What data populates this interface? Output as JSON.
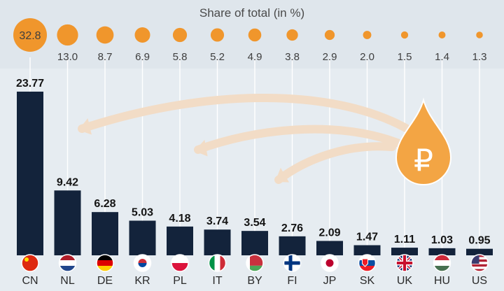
{
  "share_title": "Share of total (in %)",
  "colors": {
    "bar": "#13233b",
    "share_bubble": "#f0962c",
    "share_bubble_dark": "#d97e14",
    "drop": "#f3a544",
    "arrow": "#f2dcc6",
    "guide_line": "#ffffff",
    "background": "#e6ecf1"
  },
  "chart_data": {
    "type": "bar",
    "categories": [
      "CN",
      "NL",
      "DE",
      "KR",
      "PL",
      "IT",
      "BY",
      "FI",
      "JP",
      "SK",
      "UK",
      "HU",
      "US"
    ],
    "values": [
      23.77,
      9.42,
      6.28,
      5.03,
      4.18,
      3.74,
      3.54,
      2.76,
      2.09,
      1.47,
      1.11,
      1.03,
      0.95
    ],
    "value_labels": [
      "23.77",
      "9.42",
      "6.28",
      "5.03",
      "4.18",
      "3.74",
      "3.54",
      "2.76",
      "2.09",
      "1.47",
      "1.11",
      "1.03",
      "0.95"
    ],
    "share_of_total": [
      32.8,
      13.0,
      8.7,
      6.9,
      5.8,
      5.2,
      4.9,
      3.8,
      2.9,
      2.0,
      1.5,
      1.4,
      1.3
    ],
    "share_labels": [
      "32.8",
      "13.0",
      "8.7",
      "6.9",
      "5.8",
      "5.2",
      "4.9",
      "3.8",
      "2.9",
      "2.0",
      "1.5",
      "1.4",
      "1.3"
    ],
    "ylim": [
      0,
      23.77
    ],
    "grid": false,
    "xlabel": "",
    "ylabel": "",
    "flag_icons": [
      "flag-cn-icon",
      "flag-nl-icon",
      "flag-de-icon",
      "flag-kr-icon",
      "flag-pl-icon",
      "flag-it-icon",
      "flag-by-icon",
      "flag-fi-icon",
      "flag-jp-icon",
      "flag-sk-icon",
      "flag-uk-icon",
      "flag-hu-icon",
      "flag-us-icon"
    ],
    "decoration": {
      "drop_icon": "ruble-oil-drop-icon",
      "drop_symbol": "₽",
      "arrows": "curved arrows from drop toward bars"
    }
  }
}
